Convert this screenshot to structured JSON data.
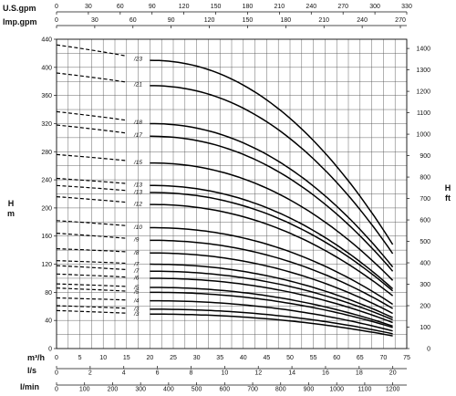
{
  "chart_data": {
    "type": "line",
    "title": "",
    "grid": true,
    "top_scales": [
      {
        "label": "U.S.gpm",
        "ticks": [
          "0",
          "30",
          "60",
          "90",
          "120",
          "150",
          "180",
          "210",
          "240",
          "270",
          "300",
          "330"
        ],
        "range": [
          0,
          330
        ]
      },
      {
        "label": "Imp.gpm",
        "ticks": [
          "0",
          "30",
          "60",
          "90",
          "120",
          "150",
          "180",
          "210",
          "240",
          "270"
        ],
        "range": [
          0,
          275
        ]
      }
    ],
    "bottom_scales": [
      {
        "label": "m³/h",
        "ticks": [
          "0",
          "5",
          "10",
          "15",
          "20",
          "25",
          "30",
          "35",
          "40",
          "45",
          "50",
          "55",
          "60",
          "65",
          "70",
          "75"
        ],
        "range": [
          0,
          75
        ]
      },
      {
        "label": "l/s",
        "ticks": [
          "0",
          "2",
          "4",
          "6",
          "8",
          "10",
          "12",
          "14",
          "16",
          "18",
          "20"
        ],
        "range": [
          0,
          20.83
        ]
      },
      {
        "label": "l/min",
        "ticks": [
          "0",
          "100",
          "200",
          "300",
          "400",
          "500",
          "600",
          "700",
          "800",
          "900",
          "1000",
          "1100",
          "1200"
        ],
        "range": [
          0,
          1250
        ]
      }
    ],
    "y_left": {
      "label_top": "H",
      "label_bottom": "m",
      "ticks": [
        "0",
        "40",
        "80",
        "120",
        "160",
        "200",
        "240",
        "280",
        "320",
        "360",
        "400",
        "440"
      ],
      "range": [
        0,
        440
      ]
    },
    "y_right": {
      "label_top": "H",
      "label_bottom": "ft",
      "ticks": [
        "0",
        "100",
        "200",
        "300",
        "400",
        "500",
        "600",
        "700",
        "800",
        "900",
        "1000",
        "1100",
        "1200",
        "1300",
        "1400"
      ],
      "range": [
        0,
        1443
      ]
    },
    "x_range": [
      0,
      75
    ],
    "solid_x_start": 20,
    "curve_x_end": 72,
    "series": [
      {
        "name": "/23",
        "shutoff": 432,
        "h20": 410,
        "h72": 148
      },
      {
        "name": "/21",
        "shutoff": 392,
        "h20": 374,
        "h72": 135
      },
      {
        "name": "/18",
        "shutoff": 337,
        "h20": 320,
        "h72": 116
      },
      {
        "name": "/17",
        "shutoff": 318,
        "h20": 302,
        "h72": 110
      },
      {
        "name": "/15",
        "shutoff": 276,
        "h20": 264,
        "h72": 97
      },
      {
        "name": "/13",
        "shutoff": 242,
        "h20": 232,
        "h72": 85
      },
      {
        "name": "/13",
        "shutoff": 232,
        "h20": 222,
        "h72": 82
      },
      {
        "name": "/12",
        "shutoff": 216,
        "h20": 205,
        "h72": 75
      },
      {
        "name": "/10",
        "shutoff": 182,
        "h20": 172,
        "h72": 63
      },
      {
        "name": "/9",
        "shutoff": 164,
        "h20": 154,
        "h72": 57
      },
      {
        "name": "/8",
        "shutoff": 142,
        "h20": 136,
        "h72": 50
      },
      {
        "name": "/7",
        "shutoff": 125,
        "h20": 120,
        "h72": 44
      },
      {
        "name": "/7",
        "shutoff": 118,
        "h20": 110,
        "h72": 41
      },
      {
        "name": "/6",
        "shutoff": 106,
        "h20": 100,
        "h72": 37
      },
      {
        "name": "/5",
        "shutoff": 92,
        "h20": 87,
        "h72": 32
      },
      {
        "name": "/5",
        "shutoff": 86,
        "h20": 80,
        "h72": 30
      },
      {
        "name": "/4",
        "shutoff": 72,
        "h20": 68,
        "h72": 25
      },
      {
        "name": "/3",
        "shutoff": 61,
        "h20": 56,
        "h72": 21
      },
      {
        "name": "/3",
        "shutoff": 54,
        "h20": 49,
        "h72": 18
      }
    ]
  }
}
